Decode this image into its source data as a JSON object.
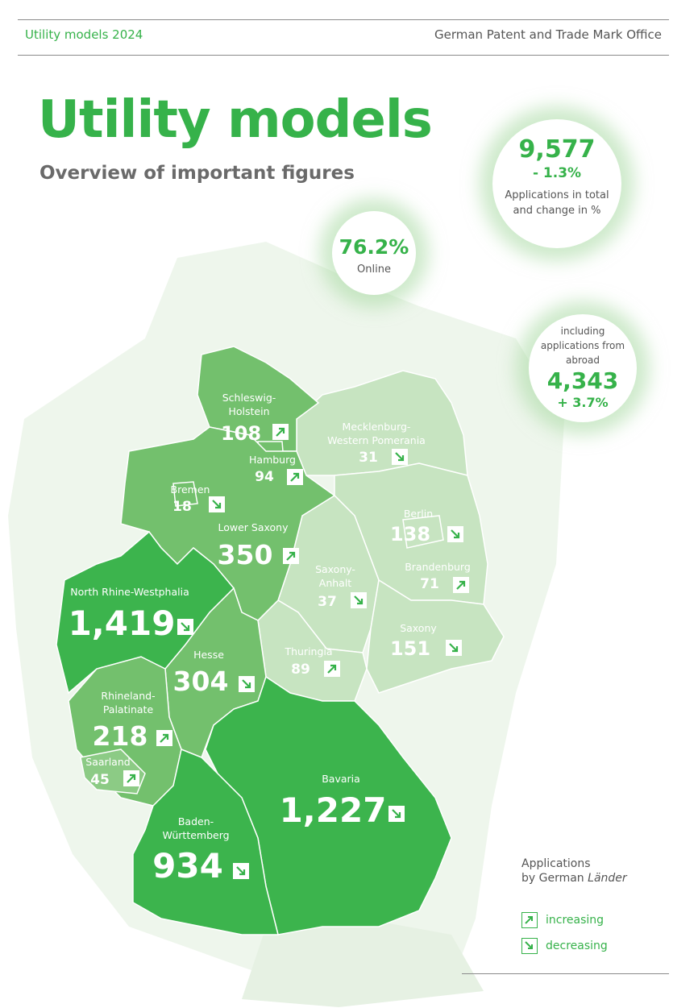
{
  "header": {
    "left": "Utility models 2024",
    "right": "German Patent and Trade Mark Office"
  },
  "title": "Utility models",
  "subtitle": "Overview of important figures",
  "bubbles": {
    "total": {
      "value": "9,577",
      "change": "- 1.3%",
      "label_line1": "Applications in total",
      "label_line2": "and change in %"
    },
    "online": {
      "value": "76.2%",
      "label": "Online"
    },
    "abroad": {
      "label_line1": "including",
      "label_line2": "applications from",
      "label_line3": "abroad",
      "value": "4,343",
      "change": "+ 3.7%"
    }
  },
  "regions": [
    {
      "name": "Schleswig-Holstein",
      "name_line1": "Schleswig-",
      "name_line2": "Holstein",
      "value": "108",
      "trend": "increasing"
    },
    {
      "name": "Hamburg",
      "value": "94",
      "trend": "increasing"
    },
    {
      "name": "Mecklenburg-Western Pomerania",
      "name_line1": "Mecklenburg-",
      "name_line2": "Western Pomerania",
      "value": "31",
      "trend": "decreasing"
    },
    {
      "name": "Bremen",
      "value": "18",
      "trend": "decreasing"
    },
    {
      "name": "Berlin",
      "value": "138",
      "trend": "decreasing"
    },
    {
      "name": "Lower Saxony",
      "value": "350",
      "trend": "increasing"
    },
    {
      "name": "Brandenburg",
      "value": "71",
      "trend": "increasing"
    },
    {
      "name": "Saxony-Anhalt",
      "name_line1": "Saxony-",
      "name_line2": "Anhalt",
      "value": "37",
      "trend": "decreasing"
    },
    {
      "name": "North Rhine-Westphalia",
      "value": "1,419",
      "trend": "decreasing"
    },
    {
      "name": "Saxony",
      "value": "151",
      "trend": "decreasing"
    },
    {
      "name": "Hesse",
      "value": "304",
      "trend": "decreasing"
    },
    {
      "name": "Thuringia",
      "value": "89",
      "trend": "increasing"
    },
    {
      "name": "Rhineland-Palatinate",
      "name_line1": "Rhineland-",
      "name_line2": "Palatinate",
      "value": "218",
      "trend": "increasing"
    },
    {
      "name": "Saarland",
      "value": "45",
      "trend": "increasing"
    },
    {
      "name": "Bavaria",
      "value": "1,227",
      "trend": "decreasing"
    },
    {
      "name": "Baden-Württemberg",
      "name_line1": "Baden-",
      "name_line2": "Württemberg",
      "value": "934",
      "trend": "decreasing"
    }
  ],
  "legend": {
    "title_line1": "Applications",
    "title_line2_prefix": "by German ",
    "title_line2_italic": "Länder",
    "increasing": "increasing",
    "decreasing": "decreasing",
    "increasing_icon": "arrow-up-right-icon",
    "decreasing_icon": "arrow-down-right-icon"
  },
  "colors": {
    "accent": "#36b24a",
    "dark": "#3cb44d",
    "medium": "#6cbf6a",
    "light": "#c6e4c0",
    "background_map": "#e8f3e5"
  }
}
